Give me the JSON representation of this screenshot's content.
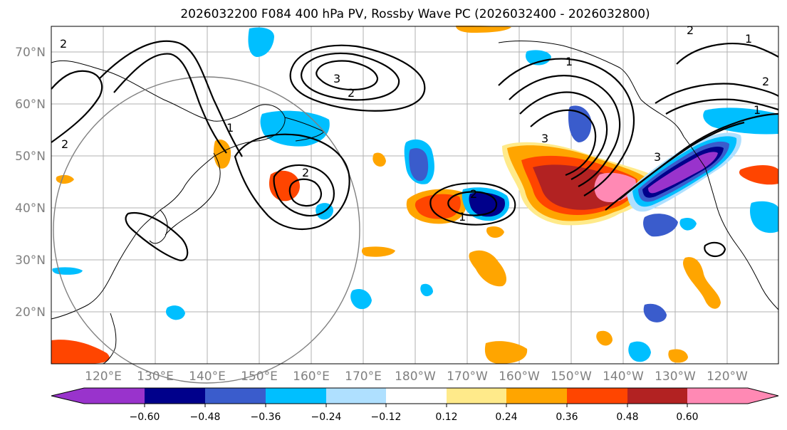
{
  "title": "2026032200 F084 400 hPa PV, Rossby Wave PC (2026032400 - 2026032800)",
  "map": {
    "lat_ticks": [
      "70°N",
      "60°N",
      "50°N",
      "40°N",
      "30°N",
      "20°N"
    ],
    "lon_ticks": [
      "120°E",
      "130°E",
      "140°E",
      "150°E",
      "160°E",
      "170°E",
      "180°W",
      "170°W",
      "160°W",
      "150°W",
      "140°W",
      "130°W",
      "120°W"
    ],
    "contour_labels": [
      "2",
      "2",
      "3",
      "2",
      "2",
      "1",
      "2",
      "2",
      "1",
      "1",
      "3",
      "1",
      "3",
      "2",
      "1"
    ]
  },
  "colorbar": {
    "colors": [
      "#9933cc",
      "#00008b",
      "#3a5ccc",
      "#00bfff",
      "#afe0ff",
      "#ffffff",
      "#ffea8a",
      "#ffa500",
      "#ff4500",
      "#b22222",
      "#ff89b4"
    ],
    "tick_labels": [
      "−0.60",
      "−0.48",
      "−0.36",
      "−0.24",
      "−0.12",
      "0.12",
      "0.24",
      "0.36",
      "0.48",
      "0.60"
    ]
  },
  "colors": {
    "pos_light": "#ffea8a",
    "pos_orange": "#ffa500",
    "pos_red": "#ff4500",
    "pos_dark": "#b22222",
    "pos_pink": "#ff89b4",
    "neg_light": "#afe0ff",
    "neg_cyan": "#00bfff",
    "neg_blue": "#3a5ccc",
    "neg_navy": "#00008b",
    "neg_purple": "#9933cc"
  }
}
